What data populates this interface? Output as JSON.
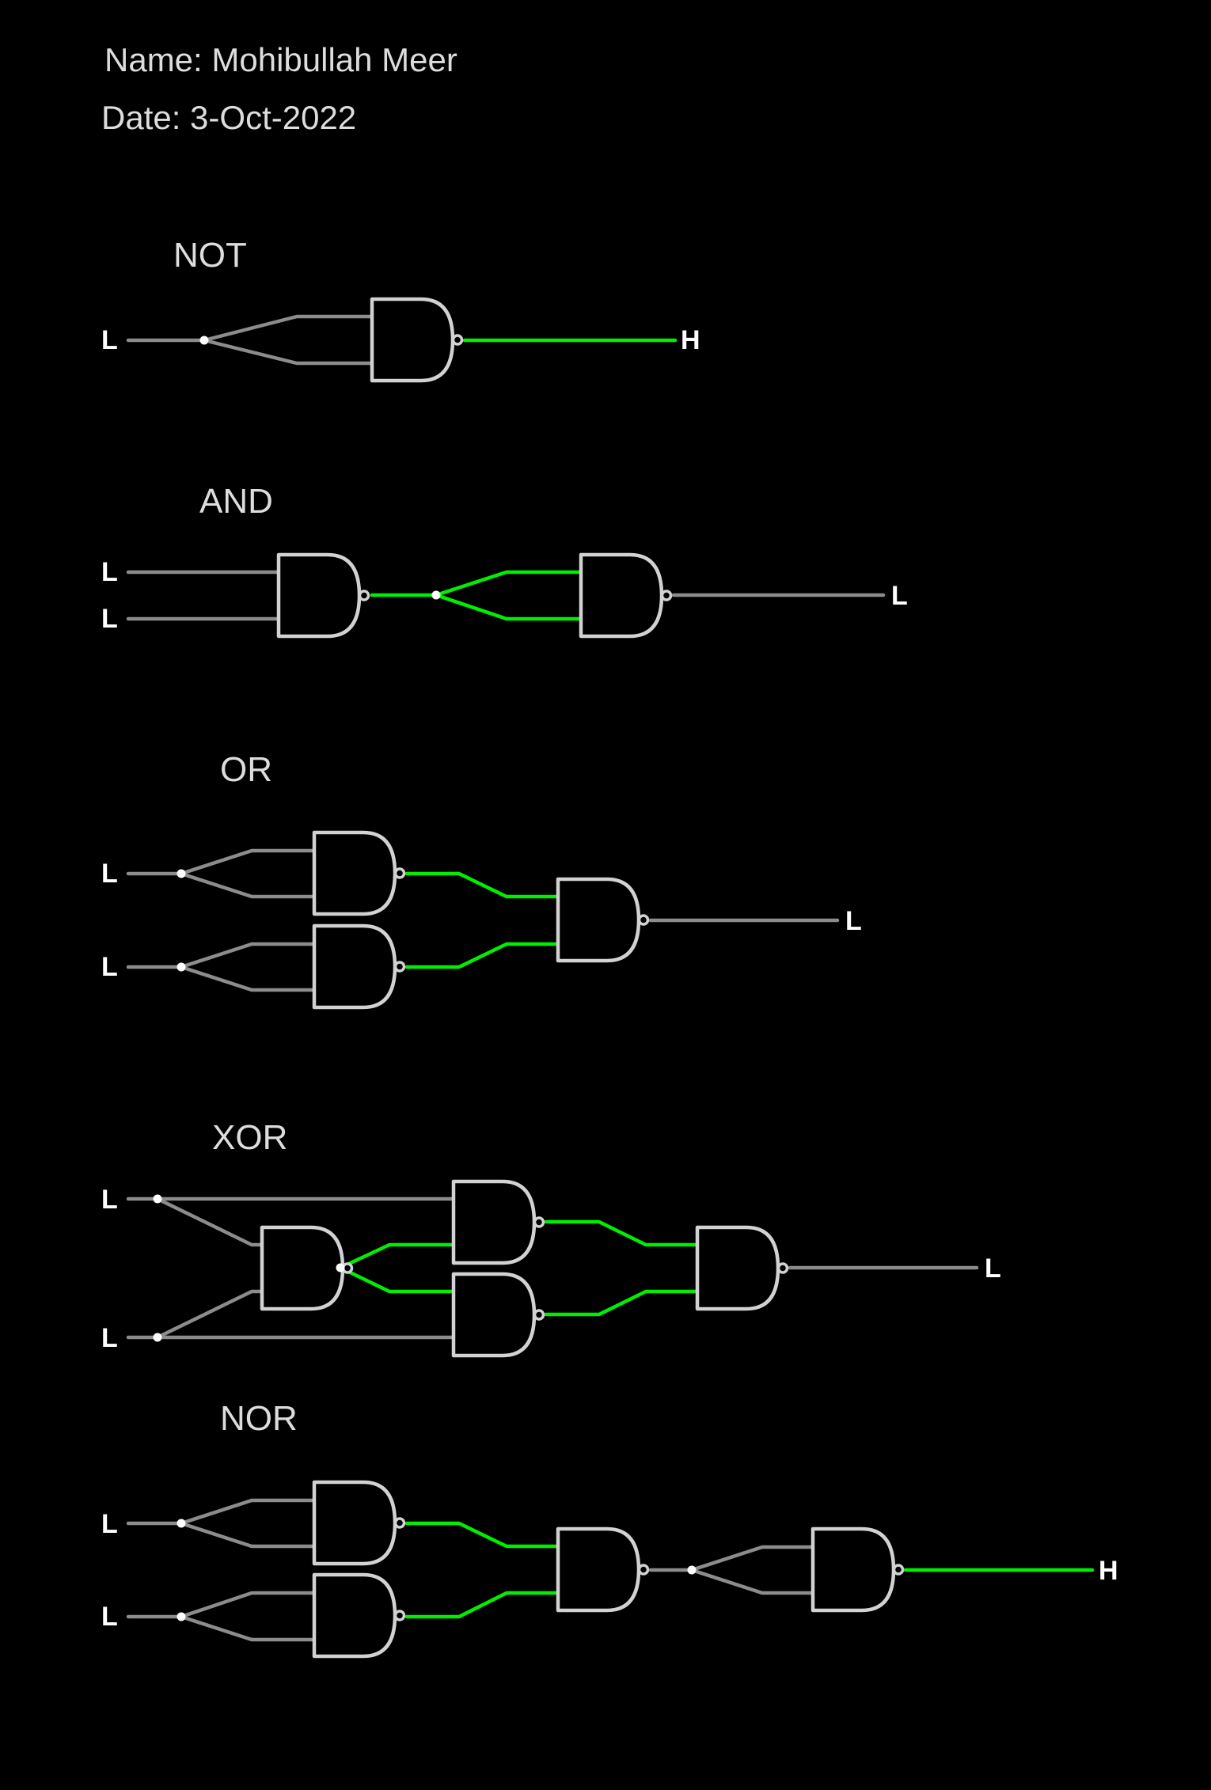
{
  "header": {
    "name_text": "Name: Mohibullah Meer",
    "date_text": "Date:  3-Oct-2022"
  },
  "colors": {
    "background": "#000000",
    "text": "#dddddd",
    "wire_low": "#8c8c8c",
    "wire_high": "#00ee00",
    "gate_stroke": "#d2d2d2",
    "junction": "#ffffff"
  },
  "circuits": [
    {
      "title": "NOT",
      "inputs": [
        "L"
      ],
      "output": "H"
    },
    {
      "title": "AND",
      "inputs": [
        "L",
        "L"
      ],
      "output": "L"
    },
    {
      "title": "OR",
      "inputs": [
        "L",
        "L"
      ],
      "output": "L"
    },
    {
      "title": "XOR",
      "inputs": [
        "L",
        "L"
      ],
      "output": "L"
    },
    {
      "title": "NOR",
      "inputs": [
        "L",
        "L"
      ],
      "output": "H"
    }
  ]
}
